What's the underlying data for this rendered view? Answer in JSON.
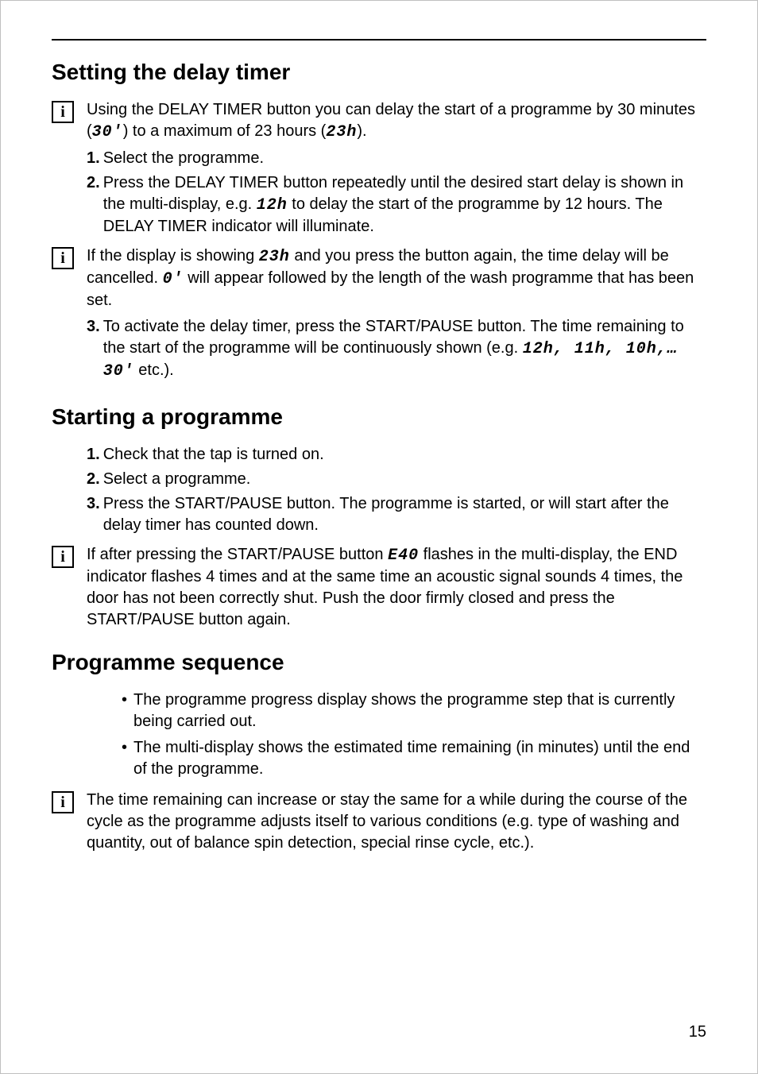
{
  "pageNumber": "15",
  "sections": [
    {
      "title": "Setting the delay timer",
      "blocks": [
        {
          "icon": "info",
          "paragraph": [
            {
              "t": "Using the DELAY TIMER button you can delay the start of a programme by 30 minutes ("
            },
            {
              "t": "30'",
              "seg7": true
            },
            {
              "t": ") to a maximum of 23 hours ("
            },
            {
              "t": "23h",
              "seg7": true
            },
            {
              "t": ")."
            }
          ]
        },
        {
          "ordered": [
            {
              "num": "1.",
              "frags": [
                {
                  "t": "Select the programme."
                }
              ]
            },
            {
              "num": "2.",
              "frags": [
                {
                  "t": "Press the DELAY TIMER button repeatedly until the desired start delay is shown in the multi-display, e.g. "
                },
                {
                  "t": "12h",
                  "seg7": true
                },
                {
                  "t": " to delay the start of the programme by 12 hours. The DELAY TIMER indicator will illuminate."
                }
              ]
            }
          ]
        },
        {
          "icon": "info",
          "paragraph": [
            {
              "t": "If the display is showing "
            },
            {
              "t": "23h",
              "seg7": true
            },
            {
              "t": " and you press the button again, the time delay will be cancelled. "
            },
            {
              "t": "0'",
              "seg7": true
            },
            {
              "t": " will appear followed by the length of the wash programme that has been set."
            }
          ]
        },
        {
          "ordered": [
            {
              "num": "3.",
              "frags": [
                {
                  "t": "To activate the delay timer, press the START/PAUSE button. The time remaining to the start of the programme will be continuously shown (e.g. "
                },
                {
                  "t": "12h, 11h, 10h,… 30'",
                  "seg7": true
                },
                {
                  "t": " etc.)."
                }
              ]
            }
          ]
        }
      ]
    },
    {
      "title": "Starting a programme",
      "blocks": [
        {
          "ordered": [
            {
              "num": "1.",
              "frags": [
                {
                  "t": "Check that the tap is turned on."
                }
              ]
            },
            {
              "num": "2.",
              "frags": [
                {
                  "t": "Select a programme."
                }
              ]
            },
            {
              "num": "3.",
              "frags": [
                {
                  "t": "Press the START/PAUSE button. The programme is started, or will start after the delay timer has counted down."
                }
              ]
            }
          ]
        },
        {
          "icon": "info",
          "paragraph": [
            {
              "t": "If after pressing the START/PAUSE button "
            },
            {
              "t": "E40",
              "seg7": true
            },
            {
              "t": " flashes in the multi-display, the END indicator flashes 4 times and at the same time an acoustic signal sounds 4 times, the door has not been correctly shut. Push the door firmly closed and press the START/PAUSE button again."
            }
          ]
        }
      ]
    },
    {
      "title": "Programme sequence",
      "blocks": [
        {
          "bulleted": [
            {
              "frags": [
                {
                  "t": "The programme progress display shows the programme step that is currently being carried out."
                }
              ]
            },
            {
              "frags": [
                {
                  "t": "The multi-display shows the estimated time remaining (in minutes) until the end of the programme."
                }
              ]
            }
          ]
        },
        {
          "icon": "info",
          "paragraph": [
            {
              "t": "The time remaining can increase or stay the same for a while during the course of the cycle as the programme adjusts itself to various conditions (e.g. type of washing and quantity, out of balance spin detection, special rinse cycle, etc.)."
            }
          ]
        }
      ]
    }
  ]
}
